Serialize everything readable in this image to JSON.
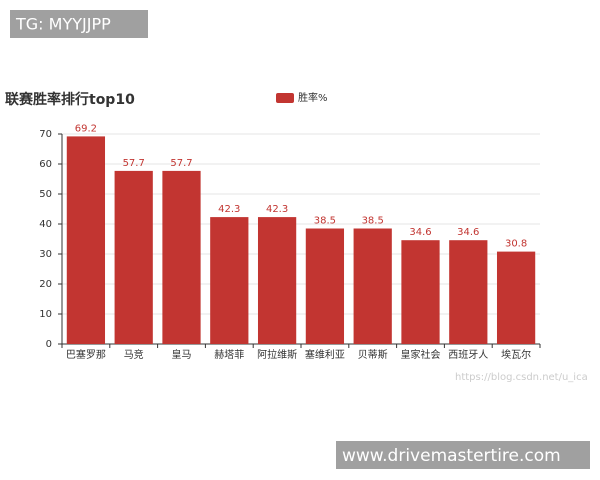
{
  "chart_data": {
    "type": "bar",
    "title": "联赛胜率排行top10",
    "categories": [
      "巴塞罗那",
      "马竞",
      "皇马",
      "赫塔菲",
      "阿拉维斯",
      "塞维利亚",
      "贝蒂斯",
      "皇家社会",
      "西班牙人",
      "埃瓦尔"
    ],
    "series": [
      {
        "name": "胜率%",
        "color": "#c23531",
        "values": [
          69.2,
          57.7,
          57.7,
          42.3,
          42.3,
          38.5,
          38.5,
          34.6,
          34.6,
          30.8
        ]
      }
    ],
    "ylim": [
      0,
      70
    ],
    "yticks": [
      0,
      10,
      20,
      30,
      40,
      50,
      60,
      70
    ],
    "grid": true,
    "legend": "top"
  },
  "overlays": {
    "top_left": "TG: MYYJJPP",
    "bottom_right": "www.drivemastertire.com",
    "watermark": "https://blog.csdn.net/u_ica"
  }
}
